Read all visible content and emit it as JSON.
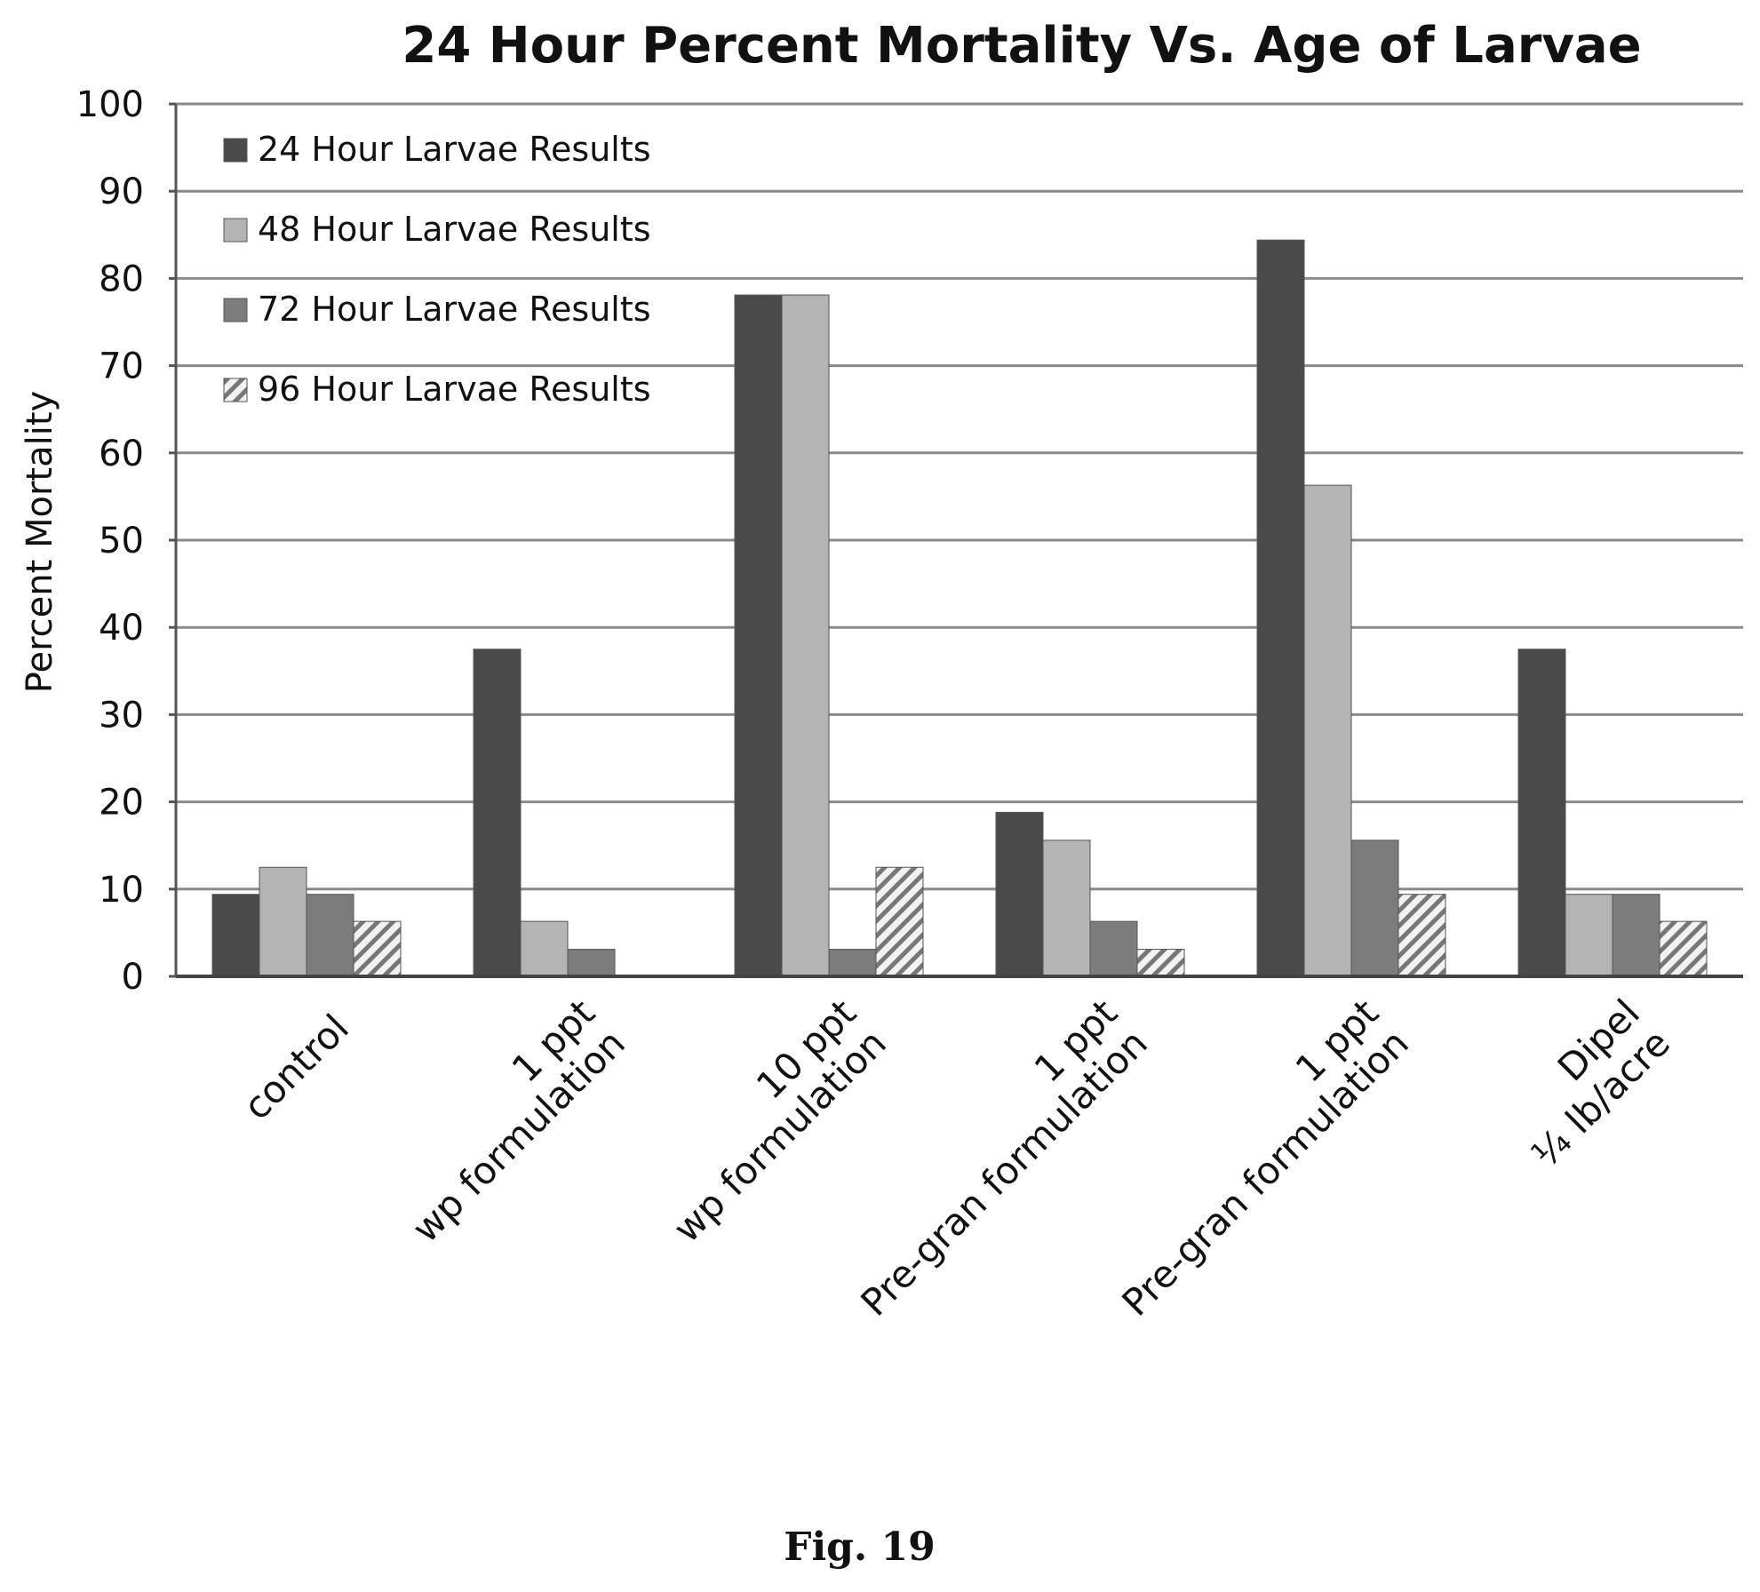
{
  "figure": {
    "caption": "Fig. 19"
  },
  "chart_data": {
    "type": "bar",
    "title": "24 Hour Percent Mortality Vs. Age of Larvae",
    "xlabel": "",
    "ylabel": "Percent Mortality",
    "ylim": [
      0,
      100
    ],
    "yticks": [
      "0",
      "10",
      "20",
      "30",
      "40",
      "50",
      "60",
      "70",
      "80",
      "90",
      "100"
    ],
    "grid": true,
    "legend_position": "top-left",
    "categories": [
      [
        "control"
      ],
      [
        "1 ppt",
        "wp formulation"
      ],
      [
        "10 ppt",
        "wp formulation"
      ],
      [
        "1 ppt",
        "Pre-gran formulation"
      ],
      [
        "1 ppt",
        "Pre-gran formulation"
      ],
      [
        "Dipel",
        "¼ lb/acre"
      ]
    ],
    "series": [
      {
        "name": "24 Hour Larvae Results",
        "color": "#4a4a4a",
        "values": [
          9.4,
          37.5,
          78.1,
          18.8,
          84.4,
          37.5
        ]
      },
      {
        "name": "48 Hour Larvae Results",
        "color": "#b4b4b4",
        "values": [
          12.5,
          6.3,
          78.1,
          15.6,
          56.3,
          9.4
        ]
      },
      {
        "name": "72 Hour Larvae Results",
        "color": "#7c7c7c",
        "values": [
          9.4,
          3.1,
          3.1,
          6.3,
          15.6,
          9.4
        ]
      },
      {
        "name": "96 Hour Larvae Results",
        "color": "hatched",
        "values": [
          6.3,
          0,
          12.5,
          3.1,
          9.4,
          6.3
        ]
      }
    ]
  }
}
